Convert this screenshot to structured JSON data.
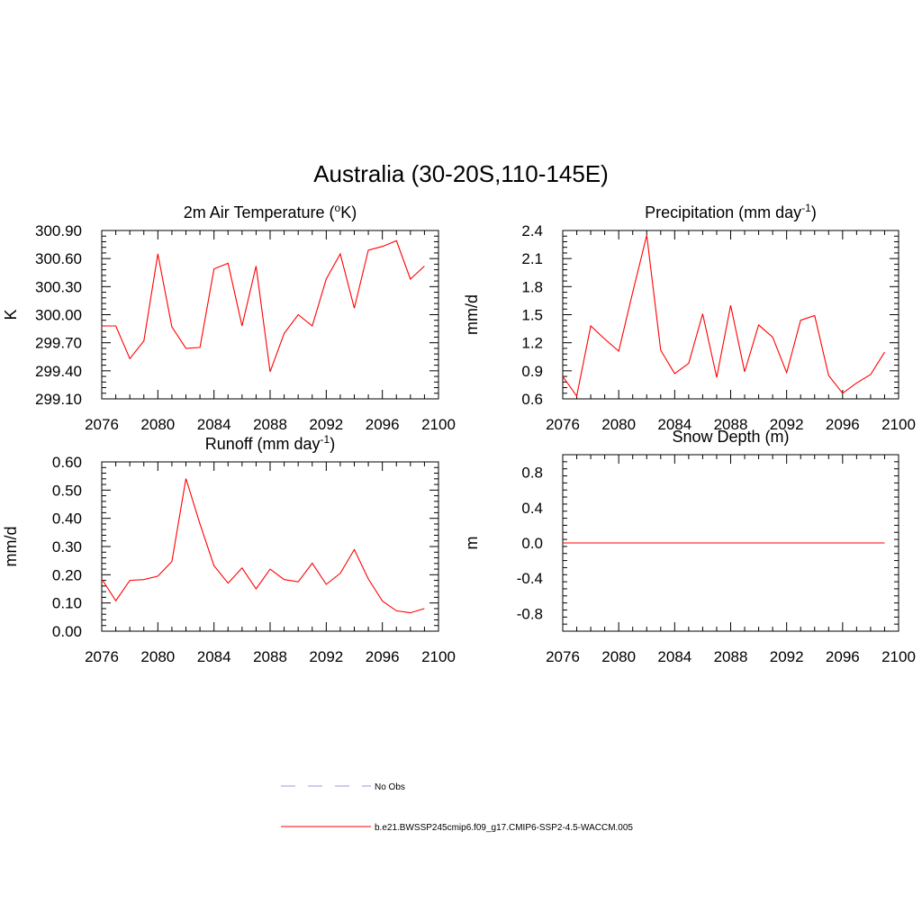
{
  "title": "Australia (30-20S,110-145E)",
  "colors": {
    "model": "#ff0000",
    "obs": "#9999dd"
  },
  "legend": {
    "obs_label": "No Obs",
    "model_label": "b.e21.BWSSP245cmip6.f09_g17.CMIP6-SSP2-4.5-WACCM.005"
  },
  "chart_data": [
    {
      "type": "line",
      "title": "2m Air Temperature (",
      "title_super": "o",
      "title_end": "K)",
      "ylabel": "K",
      "xlim": [
        2076,
        2100
      ],
      "ylim": [
        299.1,
        300.9
      ],
      "xticks": [
        2076,
        2080,
        2084,
        2088,
        2092,
        2096,
        2100
      ],
      "xtick_labels": [
        "2076",
        "2080",
        "2084",
        "2088",
        "2092",
        "2096",
        "2100"
      ],
      "yticks": [
        299.1,
        299.4,
        299.7,
        300.0,
        300.3,
        300.6,
        300.9
      ],
      "ytick_labels": [
        "299.10",
        "299.40",
        "299.70",
        "300.00",
        "300.30",
        "300.60",
        "300.90"
      ],
      "series": [
        {
          "x": [
            2076,
            2077,
            2078,
            2079,
            2080,
            2081,
            2082,
            2083,
            2084,
            2085,
            2086,
            2087,
            2088,
            2089,
            2090,
            2091,
            2092,
            2093,
            2094,
            2095,
            2096,
            2097,
            2098,
            2099
          ],
          "values": [
            299.88,
            299.88,
            299.53,
            299.72,
            300.65,
            299.87,
            299.64,
            299.65,
            300.49,
            300.55,
            299.88,
            300.52,
            299.39,
            299.8,
            300.0,
            299.88,
            300.38,
            300.65,
            300.07,
            300.69,
            300.73,
            300.79,
            300.38,
            300.52
          ]
        }
      ]
    },
    {
      "type": "line",
      "title": "Precipitation (mm day",
      "title_super": "-1",
      "title_end": ")",
      "ylabel": "mm/d",
      "xlim": [
        2076,
        2100
      ],
      "ylim": [
        0.6,
        2.4
      ],
      "xticks": [
        2076,
        2080,
        2084,
        2088,
        2092,
        2096,
        2100
      ],
      "xtick_labels": [
        "2076",
        "2080",
        "2084",
        "2088",
        "2092",
        "2096",
        "2100"
      ],
      "yticks": [
        0.6,
        0.9,
        1.2,
        1.5,
        1.8,
        2.1,
        2.4
      ],
      "ytick_labels": [
        "0.6",
        "0.9",
        "1.2",
        "1.5",
        "1.8",
        "2.1",
        "2.4"
      ],
      "series": [
        {
          "x": [
            2076,
            2077,
            2078,
            2079,
            2080,
            2081,
            2082,
            2083,
            2084,
            2085,
            2086,
            2087,
            2088,
            2089,
            2090,
            2091,
            2092,
            2093,
            2094,
            2095,
            2096,
            2097,
            2098,
            2099
          ],
          "values": [
            0.84,
            0.63,
            1.38,
            1.24,
            1.11,
            1.74,
            2.35,
            1.12,
            0.87,
            0.98,
            1.51,
            0.83,
            1.6,
            0.89,
            1.39,
            1.26,
            0.88,
            1.44,
            1.49,
            0.85,
            0.66,
            0.77,
            0.86,
            1.1
          ]
        }
      ]
    },
    {
      "type": "line",
      "title": "Runoff (mm day",
      "title_super": "-1",
      "title_end": ")",
      "ylabel": "mm/d",
      "xlim": [
        2076,
        2100
      ],
      "ylim": [
        0.0,
        0.6
      ],
      "xticks": [
        2076,
        2080,
        2084,
        2088,
        2092,
        2096,
        2100
      ],
      "xtick_labels": [
        "2076",
        "2080",
        "2084",
        "2088",
        "2092",
        "2096",
        "2100"
      ],
      "yticks": [
        0.0,
        0.1,
        0.2,
        0.3,
        0.4,
        0.5,
        0.6
      ],
      "ytick_labels": [
        "0.00",
        "0.10",
        "0.20",
        "0.30",
        "0.40",
        "0.50",
        "0.60"
      ],
      "series": [
        {
          "x": [
            2076,
            2077,
            2078,
            2079,
            2080,
            2081,
            2082,
            2083,
            2084,
            2085,
            2086,
            2087,
            2088,
            2089,
            2090,
            2091,
            2092,
            2093,
            2094,
            2095,
            2096,
            2097,
            2098,
            2099
          ],
          "values": [
            0.185,
            0.108,
            0.18,
            0.183,
            0.195,
            0.247,
            0.541,
            0.38,
            0.232,
            0.17,
            0.224,
            0.15,
            0.22,
            0.183,
            0.175,
            0.241,
            0.166,
            0.205,
            0.289,
            0.185,
            0.107,
            0.072,
            0.065,
            0.08
          ]
        }
      ]
    },
    {
      "type": "line",
      "title": "Snow Depth (m)",
      "title_super": "",
      "title_end": "",
      "ylabel": "m",
      "xlim": [
        2076,
        2100
      ],
      "ylim": [
        -1.0,
        1.0
      ],
      "xticks": [
        2076,
        2080,
        2084,
        2088,
        2092,
        2096,
        2100
      ],
      "xtick_labels": [
        "2076",
        "2080",
        "2084",
        "2088",
        "2092",
        "2096",
        "2100"
      ],
      "yticks": [
        -0.8,
        -0.4,
        0.0,
        0.4,
        0.8
      ],
      "ytick_labels": [
        "-0.8",
        "-0.4",
        "0.0",
        "0.4",
        "0.8"
      ],
      "series": [
        {
          "x": [
            2076,
            2099
          ],
          "values": [
            0.0,
            0.0
          ]
        }
      ]
    }
  ]
}
